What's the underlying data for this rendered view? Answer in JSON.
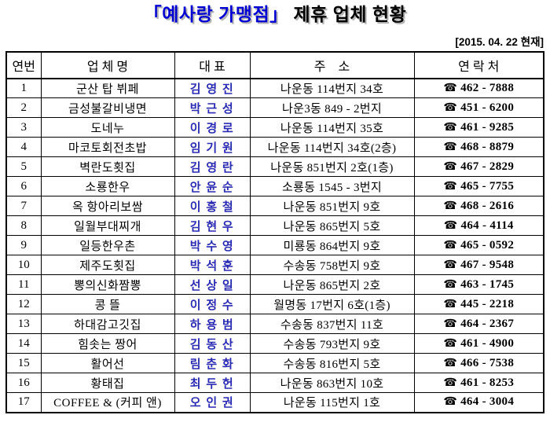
{
  "title": {
    "highlight": "「예사랑 가맹점」",
    "rest": " 제휴 업체 현황"
  },
  "date_note": "[2015. 04. 22 현재]",
  "colors": {
    "title_blue": "#0000d2",
    "title_shadow_gray": "#b4b4b4",
    "rep_name_blue": "#2a2ab2",
    "border_black": "#000000",
    "background": "#ffffff"
  },
  "table": {
    "phone_icon": "☎",
    "headers": [
      "연번",
      "업 체 명",
      "대 표",
      "주    소",
      "연 락 처"
    ],
    "rows": [
      {
        "no": "1",
        "name": "군산 탑 뷔페",
        "rep": "김 영 진",
        "addr": "나운동 114번지 34호",
        "phone": "462 - 7888"
      },
      {
        "no": "2",
        "name": "금성불갈비냉면",
        "rep": "박 근 성",
        "addr": "나운3동 849 - 2번지",
        "phone": "451 - 6200"
      },
      {
        "no": "3",
        "name": "도네누",
        "rep": "이 경 로",
        "addr": "나운동 114번지 35호",
        "phone": "461 - 9285"
      },
      {
        "no": "4",
        "name": "마코토회전초밥",
        "rep": "임 기 원",
        "addr": "나운동 114번지 34호(2층)",
        "phone": "468 - 8879"
      },
      {
        "no": "5",
        "name": "벽란도횟집",
        "rep": "김 영 란",
        "addr": "나운동 851번지 2호(1층)",
        "phone": "467 - 2829"
      },
      {
        "no": "6",
        "name": "소룡한우",
        "rep": "안 윤 순",
        "addr": "소룡동 1545 - 3번지",
        "phone": "465 - 7755"
      },
      {
        "no": "7",
        "name": "옥 항아리보쌈",
        "rep": "이 홍 철",
        "addr": "나운동 851번지 9호",
        "phone": "468 - 2616"
      },
      {
        "no": "8",
        "name": "일월부대찌개",
        "rep": "김 현 우",
        "addr": "나운동 865번지 5호",
        "phone": "464 - 4114"
      },
      {
        "no": "9",
        "name": "일등한우촌",
        "rep": "박 수 영",
        "addr": "미룡동 864번지 9호",
        "phone": "465 - 0592"
      },
      {
        "no": "10",
        "name": "제주도횟집",
        "rep": "박 석 훈",
        "addr": "수송동 758번지 9호",
        "phone": "467 - 9548"
      },
      {
        "no": "11",
        "name": "뽕의신화짬뽕",
        "rep": "선 상 일",
        "addr": "나운동 865번지 2호",
        "phone": "463 - 1745"
      },
      {
        "no": "12",
        "name": "콩  뜰",
        "rep": "이 정 수",
        "addr": "월명동 17번지 6호(1층)",
        "phone": "445 - 2218"
      },
      {
        "no": "13",
        "name": "하대감고깃집",
        "rep": "하 용 범",
        "addr": "수송동 837번지 11호",
        "phone": "464 - 2367"
      },
      {
        "no": "14",
        "name": "힘솟는 짱어",
        "rep": "김 동 산",
        "addr": "수송동 793번지 9호",
        "phone": "461 - 4900"
      },
      {
        "no": "15",
        "name": "활어선",
        "rep": "림 춘 화",
        "addr": "수송동 816번지 5호",
        "phone": "466 - 7538"
      },
      {
        "no": "16",
        "name": "황태집",
        "rep": "최 두 헌",
        "addr": "나운동 863번지 10호",
        "phone": "461 - 8253"
      },
      {
        "no": "17",
        "name": "COFFEE & (커피 앤)",
        "rep": "오 인 권",
        "addr": "나운동 115번지 1호",
        "phone": "464 - 3004"
      }
    ]
  }
}
